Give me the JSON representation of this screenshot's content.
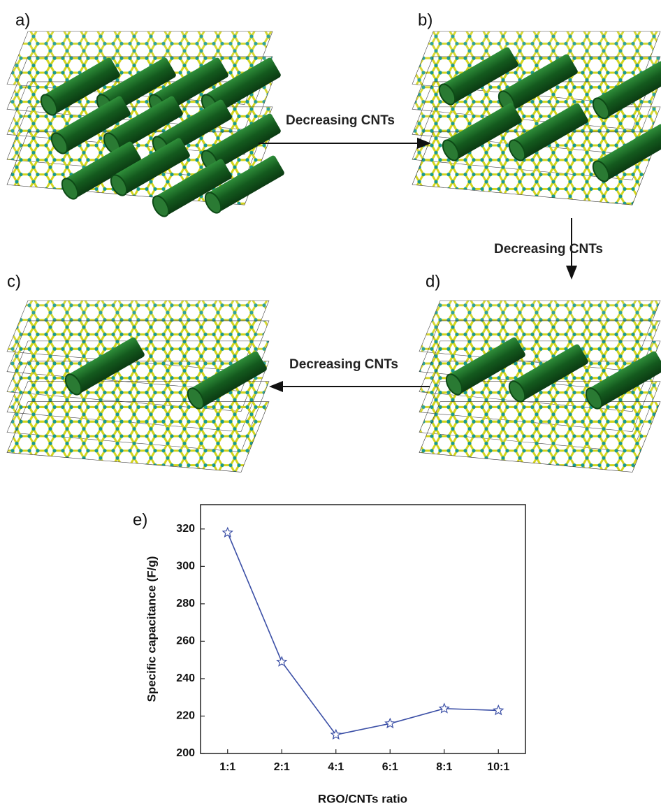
{
  "panels": [
    {
      "label": "a)"
    },
    {
      "label": "b)"
    },
    {
      "label": "c)"
    },
    {
      "label": "d)"
    }
  ],
  "arrows": [
    {
      "label": "Decreasing CNTs"
    },
    {
      "label": "Decreasing CNTs"
    },
    {
      "label": "Decreasing CNTs"
    }
  ],
  "chart_data": {
    "type": "line",
    "label": "e)",
    "x_label": "RGO/CNTs ratio",
    "y_label": "Specific capacitance (F/g)",
    "categories": [
      "1:1",
      "2:1",
      "4:1",
      "6:1",
      "8:1",
      "10:1"
    ],
    "series": [
      {
        "color": "#3b4fa6",
        "values": [
          318,
          249,
          210,
          216,
          224,
          223
        ]
      }
    ],
    "ylim": [
      200,
      333
    ],
    "yticks": [
      200,
      220,
      240,
      260,
      280,
      300,
      320
    ],
    "grid": false
  }
}
